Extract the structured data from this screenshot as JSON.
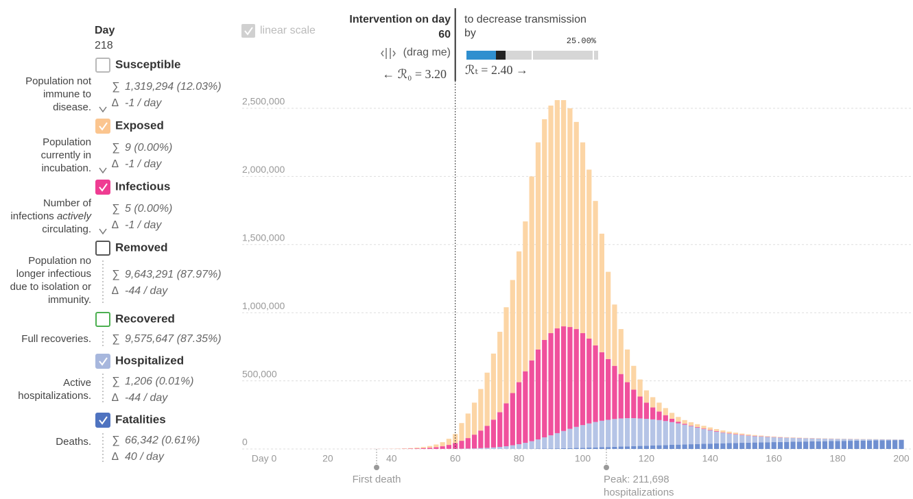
{
  "panel": {
    "day_label": "Day",
    "day": "218",
    "sum_symbol": "∑",
    "delta_symbol": "∆",
    "compartments": [
      {
        "name": "Susceptible",
        "description": [
          "Population not",
          "immune to",
          "disease."
        ],
        "sum": "1,319,294 (12.03%)",
        "delta": "-1 / day",
        "checked": false,
        "color": "#b8b8b8"
      },
      {
        "name": "Exposed",
        "description": [
          "Population",
          "currently in",
          "incubation."
        ],
        "sum": "9 (0.00%)",
        "delta": "-1 / day",
        "checked": true,
        "color": "#fbc58f"
      },
      {
        "name": "Infectious",
        "description": [
          "Number of",
          [
            "infections",
            "actively"
          ],
          "circulating."
        ],
        "sum": "5 (0.00%)",
        "delta": "-1 / day",
        "checked": true,
        "color": "#ef3c92"
      },
      {
        "name": "Removed",
        "description": [
          "Population no",
          "longer infectious",
          "due to isolation or",
          "immunity."
        ],
        "sum": "9,643,291 (87.97%)",
        "delta": "-44 / day",
        "checked": false,
        "color": "#555555"
      },
      {
        "name": "Recovered",
        "description": [
          "Full recoveries."
        ],
        "sum": "9,575,647 (87.35%)",
        "checked": false,
        "color": "#4caf50"
      },
      {
        "name": "Hospitalized",
        "description": [
          "Active",
          "hospitalizations."
        ],
        "sum": "1,206 (0.01%)",
        "delta": "-44 / day",
        "checked": true,
        "color": "#a7b7dd"
      },
      {
        "name": "Fatalities",
        "description": [
          "Deaths."
        ],
        "sum": "66,342 (0.61%)",
        "delta": "40 / day",
        "checked": true,
        "color": "#4f73c0"
      }
    ]
  },
  "controls": {
    "linear_scale": "linear scale",
    "intervention_label": "Intervention on day",
    "intervention_day": 60,
    "drag_hint": "(drag me)",
    "r0": "← ℛ₀ = 3.20",
    "decrease_label": [
      "to decrease transmission",
      "by"
    ],
    "decrease": "25.00%",
    "rt": "ℛₜ = 2.40 →"
  },
  "chart_data": {
    "type": "bar",
    "stacked": true,
    "x": [
      0,
      2,
      4,
      6,
      8,
      10,
      12,
      14,
      16,
      18,
      20,
      22,
      24,
      26,
      28,
      30,
      32,
      34,
      36,
      38,
      40,
      42,
      44,
      46,
      48,
      50,
      52,
      54,
      56,
      58,
      60,
      62,
      64,
      66,
      68,
      70,
      72,
      74,
      76,
      78,
      80,
      82,
      84,
      86,
      88,
      90,
      92,
      94,
      96,
      98,
      100,
      102,
      104,
      106,
      108,
      110,
      112,
      114,
      116,
      118,
      120,
      122,
      124,
      126,
      128,
      130,
      132,
      134,
      136,
      138,
      140,
      142,
      144,
      146,
      148,
      150,
      152,
      154,
      156,
      158,
      160,
      162,
      164,
      166,
      168,
      170,
      172,
      174,
      176,
      178,
      180,
      182,
      184,
      186,
      188,
      190,
      192,
      194,
      196,
      198,
      200
    ],
    "xlim": [
      0,
      200
    ],
    "xticks": [
      {
        "value": 0,
        "label": "Day 0"
      },
      20,
      40,
      60,
      80,
      100,
      120,
      140,
      160,
      180,
      200
    ],
    "ylim": [
      0,
      2500000
    ],
    "yticks": [
      0,
      {
        "value": 500000,
        "label": "500,000"
      },
      {
        "value": 1000000,
        "label": "1,000,000"
      },
      {
        "value": 1500000,
        "label": "1,500,000"
      },
      {
        "value": 2000000,
        "label": "2,000,000"
      },
      {
        "value": 2500000,
        "label": "2,500,000"
      }
    ],
    "grid": true,
    "series": [
      {
        "name": "Fatalities",
        "color": "#6f8fd0",
        "values": [
          0,
          0,
          0,
          0,
          0,
          0,
          0,
          0,
          0,
          0,
          0,
          0,
          0,
          0,
          0,
          0,
          0,
          0,
          0,
          0,
          1,
          1,
          1,
          1,
          2,
          2,
          4,
          7,
          11,
          17,
          26,
          40,
          60,
          90,
          130,
          180,
          250,
          350,
          500,
          700,
          1000,
          1300,
          1700,
          2200,
          2800,
          3500,
          4300,
          5200,
          6200,
          7300,
          8500,
          9800,
          11200,
          12700,
          14200,
          15800,
          17400,
          19000,
          20600,
          22200,
          23800,
          25400,
          27000,
          28600,
          30200,
          31800,
          33300,
          34800,
          36200,
          37600,
          39000,
          40300,
          41600,
          42800,
          44000,
          45100,
          46200,
          47200,
          48200,
          49200,
          50100,
          51000,
          51900,
          52800,
          53700,
          54600,
          55400,
          56200,
          57000,
          57800,
          58600,
          59300,
          60000,
          60700,
          61400,
          62100,
          62800,
          63500,
          64200,
          64900,
          65600
        ]
      },
      {
        "name": "Hospitalized",
        "color": "#b5c4e6",
        "values": [
          0,
          0,
          0,
          0,
          0,
          0,
          0,
          0,
          0,
          0,
          0,
          0,
          0,
          0,
          0,
          0,
          1,
          2,
          5,
          10,
          20,
          30,
          45,
          70,
          100,
          150,
          250,
          400,
          600,
          900,
          1400,
          1960,
          2940,
          3910,
          5870,
          7820,
          10750,
          14650,
          19500,
          26300,
          34000,
          43700,
          55300,
          67800,
          82200,
          96500,
          111700,
          126800,
          141800,
          154700,
          166500,
          177200,
          186800,
          194300,
          199800,
          204200,
          206600,
          207000,
          205400,
          201800,
          197200,
          191600,
          185000,
          176400,
          166800,
          156200,
          144700,
          133200,
          120800,
          108400,
          97000,
          86700,
          77400,
          69200,
          62000,
          55900,
          50800,
          46300,
          42300,
          38800,
          35900,
          33000,
          30400,
          28000,
          25700,
          23600,
          21700,
          19900,
          18200,
          16600,
          15100,
          13700,
          12400,
          11100,
          9900,
          8700,
          7600,
          6500,
          5500,
          4500,
          3500
        ]
      },
      {
        "name": "Infectious",
        "color": "#f0509c",
        "values": [
          1,
          1,
          1,
          1,
          1,
          2,
          3,
          4,
          6,
          10,
          14,
          22,
          32,
          50,
          70,
          110,
          160,
          240,
          360,
          520,
          800,
          1200,
          1800,
          2600,
          3900,
          5800,
          8500,
          12700,
          19200,
          28800,
          42200,
          58000,
          77000,
          101000,
          129000,
          162000,
          204000,
          255000,
          315000,
          383000,
          455000,
          525000,
          593000,
          660000,
          715000,
          750000,
          769000,
          768000,
          747000,
          718000,
          675000,
          623000,
          562000,
          503000,
          446000,
          390000,
          326000,
          264000,
          209000,
          161000,
          119000,
          88000,
          63000,
          43000,
          25000,
          12000,
          7000,
          4000,
          4000,
          4000,
          4000,
          4000,
          3000,
          3000,
          3000,
          3000,
          2500,
          2000,
          2000,
          2000,
          1500,
          1500,
          1200,
          1200,
          1100,
          1000,
          900,
          900,
          800,
          700,
          600,
          600,
          500,
          500,
          500,
          500,
          400,
          400,
          300,
          200,
          200
        ]
      },
      {
        "name": "Exposed",
        "color": "#fcd5a5",
        "values": [
          0,
          1,
          1,
          1,
          2,
          3,
          4,
          7,
          10,
          14,
          22,
          33,
          48,
          70,
          110,
          160,
          240,
          360,
          540,
          780,
          1200,
          1800,
          2700,
          3900,
          6000,
          9000,
          13200,
          19800,
          30000,
          45000,
          66000,
          130000,
          180000,
          235000,
          305000,
          390000,
          485000,
          590000,
          705000,
          830000,
          960000,
          1100000,
          1350000,
          1520000,
          1620000,
          1670000,
          1675000,
          1660000,
          1605000,
          1520000,
          1400000,
          1240000,
          1060000,
          870000,
          640000,
          450000,
          330000,
          240000,
          175000,
          125000,
          90000,
          75000,
          65000,
          52000,
          43000,
          35000,
          27000,
          24000,
          21000,
          20000,
          18000,
          15000,
          14000,
          12000,
          11000,
          9000,
          7500,
          6500,
          5500,
          4000,
          3500,
          3000,
          3000,
          2500,
          2500,
          2300,
          2000,
          2000,
          2000,
          1900,
          1700,
          1600,
          1600,
          1500,
          1400,
          1300,
          1200,
          1100,
          1000,
          1000,
          900
        ]
      }
    ],
    "annotations": [
      {
        "text": [
          "First death"
        ]
      },
      {
        "text": [
          "Peak: 211,698",
          "hospitalizations"
        ]
      }
    ]
  }
}
